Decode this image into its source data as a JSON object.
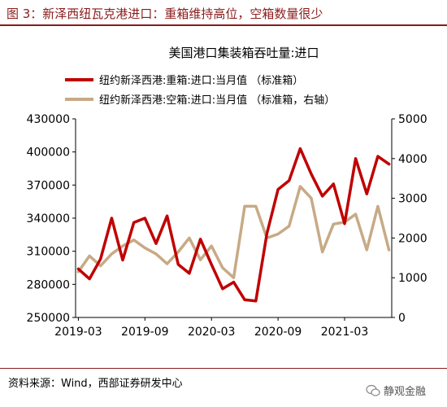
{
  "figure_title": "图 3：新泽西纽瓦克港进口：重箱维持高位，空箱数量很少",
  "source": "资料来源：Wind，西部证券研发中心",
  "watermark": "静观金融",
  "colors": {
    "full": "#c00000",
    "empty": "#c7aa86",
    "accent": "#8a1c1c"
  },
  "chart_data": {
    "type": "line",
    "title": "美国港口集装箱吞吐量:进口",
    "x_ticks": [
      "2019-03",
      "2019-09",
      "2020-03",
      "2020-09",
      "2021-03"
    ],
    "x": [
      "2019-03",
      "2019-04",
      "2019-05",
      "2019-06",
      "2019-07",
      "2019-08",
      "2019-09",
      "2019-10",
      "2019-11",
      "2019-12",
      "2020-01",
      "2020-02",
      "2020-03",
      "2020-04",
      "2020-05",
      "2020-06",
      "2020-07",
      "2020-08",
      "2020-09",
      "2020-10",
      "2020-11",
      "2020-12",
      "2021-01",
      "2021-02",
      "2021-03",
      "2021-04",
      "2021-05",
      "2021-06",
      "2021-07"
    ],
    "left_axis": {
      "min": 250000,
      "max": 430000,
      "ticks": [
        250000,
        280000,
        310000,
        340000,
        370000,
        400000,
        430000
      ]
    },
    "right_axis": {
      "min": 0,
      "max": 5000,
      "ticks": [
        0,
        1000,
        2000,
        3000,
        4000,
        5000
      ]
    },
    "series": [
      {
        "name": "纽约新泽西港:重箱:进口:当月值 （标准箱）",
        "axis": "left",
        "color": "#c00000",
        "values": [
          294000,
          285000,
          303000,
          340000,
          302000,
          336000,
          340000,
          317000,
          342000,
          298000,
          290000,
          321000,
          298000,
          276000,
          282000,
          266000,
          265000,
          326000,
          366000,
          374000,
          403000,
          380000,
          360000,
          371000,
          335000,
          394000,
          362000,
          396000,
          389000
        ]
      },
      {
        "name": "纽约新泽西港:空箱:进口:当月值 （标准箱，右轴）",
        "axis": "right",
        "color": "#c7aa86",
        "values": [
          1150,
          1550,
          1300,
          1600,
          1800,
          1950,
          1750,
          1600,
          1350,
          1650,
          2000,
          1450,
          1800,
          1250,
          1000,
          2800,
          2800,
          2000,
          2100,
          2300,
          3300,
          3000,
          1650,
          2350,
          2400,
          2600,
          1700,
          2800,
          1700
        ]
      }
    ]
  }
}
